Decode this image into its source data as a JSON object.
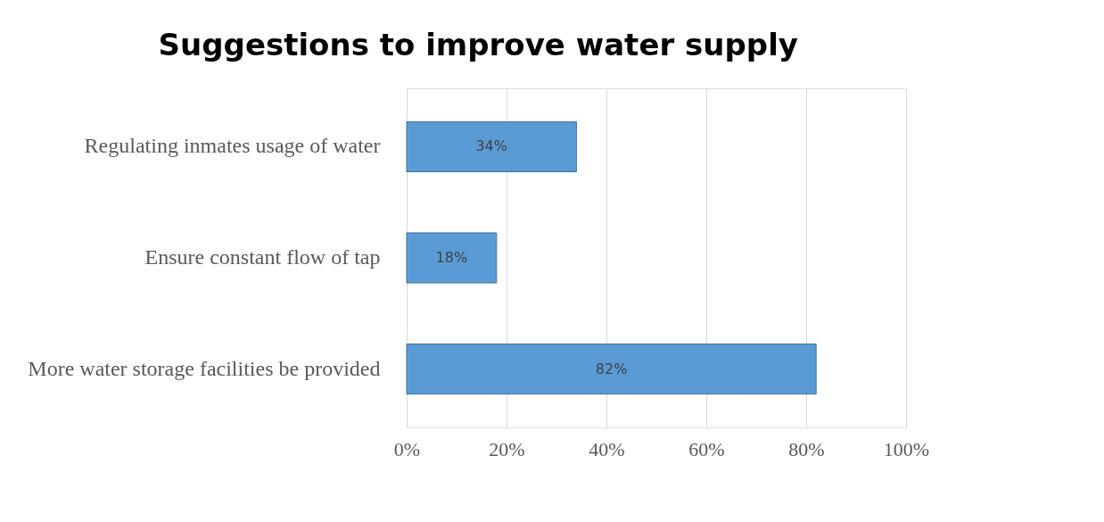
{
  "chart_data": {
    "type": "bar",
    "orientation": "horizontal",
    "title": "Suggestions to improve water supply",
    "categories": [
      "Regulating inmates usage of water",
      "Ensure constant flow of tap",
      "More water storage facilities be provided"
    ],
    "values": [
      34,
      18,
      82
    ],
    "color": "#5b9bd5",
    "value_labels": [
      "34%",
      "18%",
      "82%"
    ],
    "xlim": [
      0,
      100
    ],
    "xticks": [
      {
        "value": 0,
        "label": "0%"
      },
      {
        "value": 20,
        "label": "20%"
      },
      {
        "value": 40,
        "label": "40%"
      },
      {
        "value": 60,
        "label": "60%"
      },
      {
        "value": 80,
        "label": "80%"
      },
      {
        "value": 100,
        "label": "100%"
      }
    ],
    "grid": "x"
  }
}
